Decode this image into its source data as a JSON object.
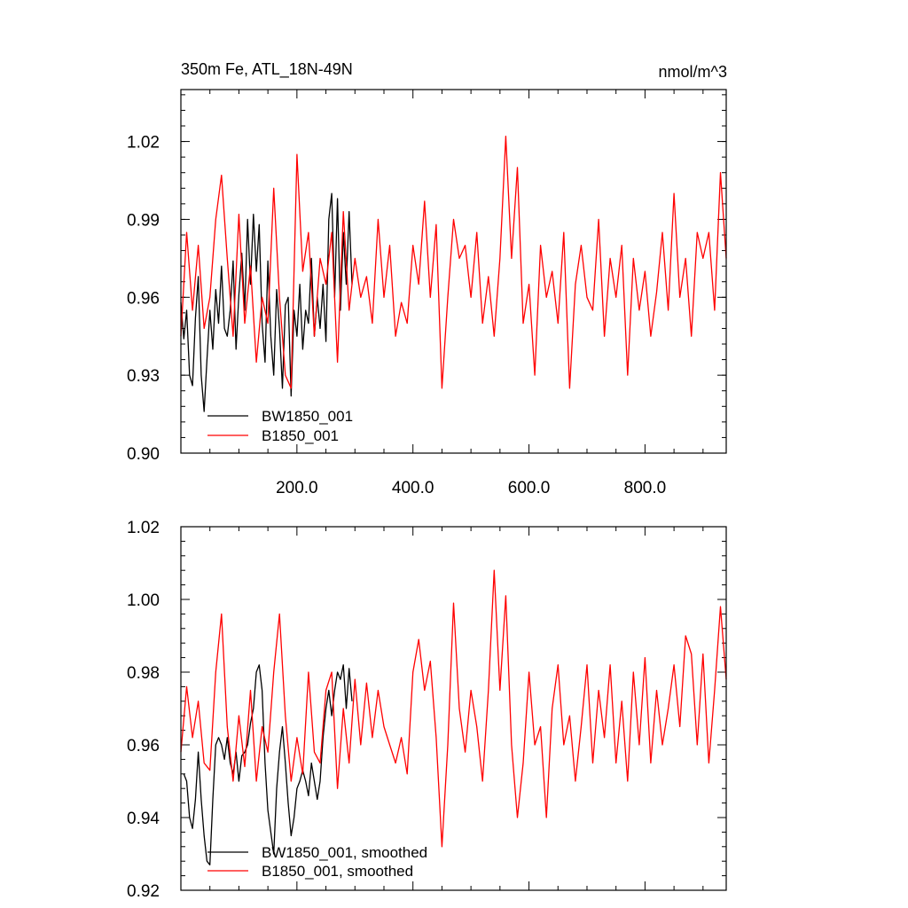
{
  "chart_data": [
    {
      "type": "line",
      "title": "350m Fe, ATL_18N-49N",
      "units_label": "nmol/m^3",
      "xlabel": "",
      "ylabel": "",
      "xlim": [
        0,
        940
      ],
      "ylim": [
        0.9,
        1.04
      ],
      "xticks": [
        200,
        400,
        600,
        800
      ],
      "xtick_labels": [
        "200.0",
        "400.0",
        "600.0",
        "800.0"
      ],
      "yticks": [
        0.9,
        0.93,
        0.96,
        0.99,
        1.02
      ],
      "ytick_labels": [
        "0.90",
        "0.93",
        "0.96",
        "0.99",
        "1.02"
      ],
      "grid": false,
      "legend_position": "bottom-left",
      "series": [
        {
          "name": "BW1850_001",
          "color": "#000000",
          "x": [
            0,
            5,
            10,
            15,
            20,
            25,
            30,
            35,
            40,
            45,
            50,
            55,
            60,
            65,
            70,
            75,
            80,
            85,
            90,
            95,
            100,
            105,
            110,
            115,
            120,
            125,
            130,
            135,
            140,
            145,
            150,
            155,
            160,
            165,
            170,
            175,
            180,
            185,
            190,
            195,
            200,
            205,
            210,
            215,
            220,
            225,
            230,
            235,
            240,
            245,
            250,
            255,
            260,
            265,
            270,
            275,
            280,
            285,
            290,
            295
          ],
          "y": [
            0.958,
            0.944,
            0.955,
            0.93,
            0.926,
            0.952,
            0.968,
            0.93,
            0.916,
            0.936,
            0.955,
            0.94,
            0.963,
            0.95,
            0.972,
            0.948,
            0.945,
            0.955,
            0.974,
            0.94,
            0.961,
            0.977,
            0.955,
            0.99,
            0.965,
            0.992,
            0.97,
            0.988,
            0.95,
            0.935,
            0.974,
            0.945,
            0.93,
            0.963,
            0.948,
            0.925,
            0.957,
            0.96,
            0.922,
            0.955,
            0.945,
            0.965,
            0.94,
            0.955,
            0.95,
            0.975,
            0.945,
            0.96,
            0.948,
            0.965,
            0.943,
            0.99,
            1.0,
            0.96,
            0.998,
            0.955,
            0.985,
            0.965,
            0.993,
            0.965
          ]
        },
        {
          "name": "B1850_001",
          "color": "#ff0000",
          "x": [
            0,
            10,
            20,
            30,
            40,
            50,
            60,
            70,
            80,
            90,
            100,
            110,
            120,
            130,
            140,
            150,
            160,
            170,
            180,
            190,
            200,
            210,
            220,
            230,
            240,
            250,
            260,
            270,
            280,
            290,
            300,
            310,
            320,
            330,
            340,
            350,
            360,
            370,
            380,
            390,
            400,
            410,
            420,
            430,
            440,
            450,
            460,
            470,
            480,
            490,
            500,
            510,
            520,
            530,
            540,
            550,
            560,
            570,
            580,
            590,
            600,
            610,
            620,
            630,
            640,
            650,
            660,
            670,
            680,
            690,
            700,
            710,
            720,
            730,
            740,
            750,
            760,
            770,
            780,
            790,
            800,
            810,
            820,
            830,
            840,
            850,
            860,
            870,
            880,
            890,
            900,
            910,
            920,
            930,
            940
          ],
          "y": [
            0.945,
            0.985,
            0.955,
            0.98,
            0.948,
            0.96,
            0.99,
            1.007,
            0.975,
            0.945,
            0.992,
            0.95,
            0.972,
            0.935,
            0.96,
            0.95,
            1.002,
            0.96,
            0.93,
            0.925,
            1.015,
            0.97,
            0.985,
            0.945,
            0.975,
            0.965,
            0.985,
            0.935,
            0.993,
            0.955,
            0.975,
            0.96,
            0.968,
            0.95,
            0.99,
            0.96,
            0.98,
            0.945,
            0.958,
            0.95,
            0.98,
            0.965,
            0.997,
            0.96,
            0.988,
            0.925,
            0.96,
            0.99,
            0.975,
            0.98,
            0.96,
            0.985,
            0.95,
            0.968,
            0.945,
            0.975,
            1.022,
            0.975,
            1.01,
            0.95,
            0.965,
            0.93,
            0.98,
            0.96,
            0.97,
            0.95,
            0.985,
            0.925,
            0.965,
            0.98,
            0.96,
            0.955,
            0.99,
            0.945,
            0.975,
            0.96,
            0.98,
            0.93,
            0.975,
            0.955,
            0.97,
            0.945,
            0.962,
            0.985,
            0.955,
            1.0,
            0.96,
            0.975,
            0.945,
            0.985,
            0.975,
            0.985,
            0.955,
            1.008,
            0.975
          ]
        }
      ]
    },
    {
      "type": "line",
      "title": "",
      "xlabel": "",
      "ylabel": "",
      "xlim": [
        0,
        940
      ],
      "ylim": [
        0.92,
        1.02
      ],
      "xticks": [
        200,
        400,
        600,
        800
      ],
      "xtick_labels": [],
      "yticks": [
        0.92,
        0.94,
        0.96,
        0.98,
        1.0,
        1.02
      ],
      "ytick_labels": [
        "0.92",
        "0.94",
        "0.96",
        "0.98",
        "1.00",
        "1.02"
      ],
      "grid": false,
      "legend_position": "bottom-left",
      "series": [
        {
          "name": "BW1850_001, smoothed",
          "color": "#000000",
          "x": [
            5,
            10,
            15,
            20,
            25,
            30,
            35,
            40,
            45,
            50,
            55,
            60,
            65,
            70,
            75,
            80,
            85,
            90,
            95,
            100,
            105,
            110,
            115,
            120,
            125,
            130,
            135,
            140,
            145,
            150,
            155,
            160,
            165,
            170,
            175,
            180,
            185,
            190,
            195,
            200,
            205,
            210,
            215,
            220,
            225,
            230,
            235,
            240,
            245,
            250,
            255,
            260,
            265,
            270,
            275,
            280,
            285,
            290,
            295
          ],
          "y": [
            0.952,
            0.95,
            0.94,
            0.937,
            0.945,
            0.958,
            0.945,
            0.935,
            0.928,
            0.927,
            0.945,
            0.96,
            0.962,
            0.96,
            0.956,
            0.962,
            0.955,
            0.952,
            0.958,
            0.95,
            0.957,
            0.958,
            0.96,
            0.966,
            0.97,
            0.98,
            0.982,
            0.975,
            0.955,
            0.942,
            0.936,
            0.93,
            0.948,
            0.958,
            0.965,
            0.955,
            0.944,
            0.935,
            0.94,
            0.948,
            0.95,
            0.953,
            0.95,
            0.946,
            0.955,
            0.95,
            0.945,
            0.95,
            0.962,
            0.97,
            0.975,
            0.968,
            0.975,
            0.98,
            0.978,
            0.982,
            0.97,
            0.981,
            0.972
          ]
        },
        {
          "name": "B1850_001, smoothed",
          "color": "#ff0000",
          "x": [
            0,
            10,
            20,
            30,
            40,
            50,
            60,
            70,
            80,
            90,
            100,
            110,
            120,
            130,
            140,
            150,
            160,
            170,
            180,
            190,
            200,
            210,
            220,
            230,
            240,
            250,
            260,
            270,
            280,
            290,
            300,
            310,
            320,
            330,
            340,
            350,
            360,
            370,
            380,
            390,
            400,
            410,
            420,
            430,
            440,
            450,
            460,
            470,
            480,
            490,
            500,
            510,
            520,
            530,
            540,
            550,
            560,
            570,
            580,
            590,
            600,
            610,
            620,
            630,
            640,
            650,
            660,
            670,
            680,
            690,
            700,
            710,
            720,
            730,
            740,
            750,
            760,
            770,
            780,
            790,
            800,
            810,
            820,
            830,
            840,
            850,
            860,
            870,
            880,
            890,
            900,
            910,
            920,
            930,
            940
          ],
          "y": [
            0.958,
            0.976,
            0.962,
            0.972,
            0.955,
            0.953,
            0.98,
            0.996,
            0.965,
            0.95,
            0.968,
            0.954,
            0.975,
            0.95,
            0.965,
            0.958,
            0.98,
            0.996,
            0.968,
            0.95,
            0.962,
            0.952,
            0.98,
            0.958,
            0.955,
            0.975,
            0.98,
            0.948,
            0.97,
            0.955,
            0.978,
            0.96,
            0.977,
            0.962,
            0.975,
            0.965,
            0.96,
            0.955,
            0.962,
            0.952,
            0.98,
            0.989,
            0.975,
            0.983,
            0.962,
            0.932,
            0.96,
            0.999,
            0.97,
            0.958,
            0.975,
            0.965,
            0.95,
            0.975,
            1.008,
            0.975,
            1.001,
            0.96,
            0.94,
            0.955,
            0.98,
            0.96,
            0.965,
            0.94,
            0.97,
            0.982,
            0.96,
            0.968,
            0.95,
            0.965,
            0.982,
            0.955,
            0.975,
            0.962,
            0.982,
            0.955,
            0.972,
            0.95,
            0.98,
            0.96,
            0.984,
            0.955,
            0.975,
            0.96,
            0.97,
            0.982,
            0.965,
            0.99,
            0.985,
            0.96,
            0.985,
            0.955,
            0.975,
            0.998,
            0.978
          ]
        }
      ]
    }
  ]
}
